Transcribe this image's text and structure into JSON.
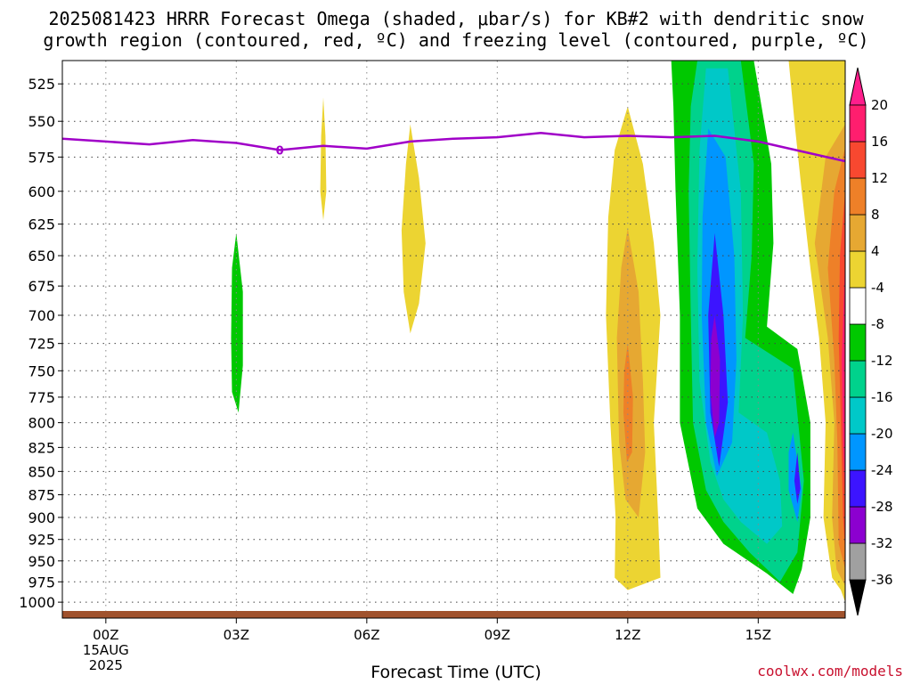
{
  "header": {
    "title_line1": "2025081423 HRRR Forecast Omega (shaded, μbar/s) for KB#2 with dendritic snow",
    "title_line2": "growth region (contoured, red, ºC) and freezing level (contoured, purple, ºC)"
  },
  "footer": {
    "credit": "coolwx.com/models"
  },
  "chart_data": {
    "type": "heatmap",
    "xlabel": "Forecast Time (UTC)",
    "ylabel": "",
    "x_ticks": [
      {
        "hour": 0,
        "label": "00Z",
        "sub": [
          "15AUG",
          "2025"
        ]
      },
      {
        "hour": 3,
        "label": "03Z",
        "sub": []
      },
      {
        "hour": 6,
        "label": "06Z",
        "sub": []
      },
      {
        "hour": 9,
        "label": "09Z",
        "sub": []
      },
      {
        "hour": 12,
        "label": "12Z",
        "sub": []
      },
      {
        "hour": 15,
        "label": "15Z",
        "sub": []
      }
    ],
    "xlim": [
      -1,
      17
    ],
    "y_ticks": [
      525,
      550,
      575,
      600,
      625,
      650,
      675,
      700,
      725,
      750,
      775,
      800,
      825,
      850,
      875,
      900,
      925,
      950,
      975,
      1000
    ],
    "ylim": [
      1020,
      510
    ],
    "y_scale": "log-pressure",
    "grid": true,
    "colorbar": {
      "levels": [
        "-36",
        "-32",
        "-28",
        "-24",
        "-20",
        "-16",
        "-12",
        "-8",
        "-4",
        "4",
        "8",
        "12",
        "16",
        "20"
      ],
      "colors": [
        "#a0a0a0",
        "#8c00d0",
        "#3c14ff",
        "#0096ff",
        "#00c8c8",
        "#00d28c",
        "#00c800",
        "#ffffff",
        "#ecd432",
        "#e6a832",
        "#ee8028",
        "#f84830",
        "#ff1e6e"
      ],
      "under_color": "#000000",
      "over_color": "#ff1e8c"
    },
    "freezing_level": {
      "label": "0",
      "label_hour": 4,
      "color": "#a000c8",
      "points": [
        [
          -1,
          562
        ],
        [
          0,
          564
        ],
        [
          1,
          566
        ],
        [
          2,
          563
        ],
        [
          3,
          565
        ],
        [
          4,
          570
        ],
        [
          5,
          567
        ],
        [
          6,
          569
        ],
        [
          7,
          564
        ],
        [
          8,
          562
        ],
        [
          9,
          561
        ],
        [
          10,
          558
        ],
        [
          11,
          561
        ],
        [
          12,
          560
        ],
        [
          13,
          561
        ],
        [
          14,
          560
        ],
        [
          15,
          564
        ],
        [
          16,
          571
        ],
        [
          17,
          578
        ]
      ]
    },
    "omega_regions": [
      {
        "value": 4,
        "color": "#ecd432",
        "points": [
          [
            5.0,
            534
          ],
          [
            5.05,
            560
          ],
          [
            5.07,
            600
          ],
          [
            5.0,
            622
          ],
          [
            4.93,
            600
          ],
          [
            4.95,
            560
          ]
        ]
      },
      {
        "value": 4,
        "color": "#ecd432",
        "points": [
          [
            7.0,
            552
          ],
          [
            7.2,
            590
          ],
          [
            7.35,
            640
          ],
          [
            7.2,
            690
          ],
          [
            7.0,
            716
          ],
          [
            6.85,
            680
          ],
          [
            6.8,
            630
          ],
          [
            6.9,
            580
          ]
        ]
      },
      {
        "value": -8,
        "color": "#00c800",
        "points": [
          [
            3.0,
            632
          ],
          [
            3.15,
            680
          ],
          [
            3.15,
            745
          ],
          [
            3.05,
            790
          ],
          [
            2.9,
            770
          ],
          [
            2.88,
            720
          ],
          [
            2.9,
            660
          ]
        ]
      },
      {
        "value": 4,
        "color": "#ecd432",
        "points": [
          [
            12.0,
            540
          ],
          [
            12.35,
            580
          ],
          [
            12.6,
            640
          ],
          [
            12.75,
            700
          ],
          [
            12.6,
            800
          ],
          [
            12.7,
            900
          ],
          [
            12.75,
            970
          ],
          [
            12.0,
            985
          ],
          [
            11.7,
            970
          ],
          [
            11.72,
            900
          ],
          [
            11.6,
            800
          ],
          [
            11.5,
            700
          ],
          [
            11.55,
            620
          ],
          [
            11.7,
            570
          ]
        ]
      },
      {
        "value": 8,
        "color": "#e6a832",
        "points": [
          [
            12.0,
            628
          ],
          [
            12.25,
            680
          ],
          [
            12.35,
            760
          ],
          [
            12.4,
            830
          ],
          [
            12.25,
            900
          ],
          [
            11.95,
            880
          ],
          [
            11.8,
            820
          ],
          [
            11.75,
            720
          ],
          [
            11.85,
            660
          ]
        ]
      },
      {
        "value": 12,
        "color": "#ee8028",
        "points": [
          [
            12.0,
            725
          ],
          [
            12.12,
            775
          ],
          [
            12.1,
            830
          ],
          [
            11.98,
            840
          ],
          [
            11.9,
            790
          ],
          [
            11.92,
            750
          ]
        ]
      },
      {
        "value": -8,
        "color": "#00c800",
        "points": [
          [
            13.0,
            510
          ],
          [
            14.9,
            510
          ],
          [
            15.3,
            580
          ],
          [
            15.35,
            640
          ],
          [
            15.2,
            710
          ],
          [
            15.9,
            730
          ],
          [
            16.2,
            800
          ],
          [
            16.2,
            900
          ],
          [
            16.0,
            960
          ],
          [
            15.8,
            990
          ],
          [
            15.2,
            965
          ],
          [
            14.2,
            930
          ],
          [
            13.6,
            890
          ],
          [
            13.2,
            800
          ],
          [
            13.2,
            700
          ],
          [
            13.1,
            600
          ],
          [
            13.05,
            540
          ]
        ]
      },
      {
        "value": -12,
        "color": "#00d28c",
        "points": [
          [
            13.6,
            510
          ],
          [
            14.6,
            510
          ],
          [
            14.9,
            580
          ],
          [
            14.85,
            650
          ],
          [
            14.7,
            720
          ],
          [
            15.8,
            748
          ],
          [
            16.05,
            860
          ],
          [
            15.9,
            940
          ],
          [
            15.5,
            975
          ],
          [
            14.8,
            940
          ],
          [
            14.2,
            905
          ],
          [
            13.8,
            870
          ],
          [
            13.5,
            800
          ],
          [
            13.45,
            700
          ],
          [
            13.4,
            600
          ],
          [
            13.45,
            540
          ]
        ]
      },
      {
        "value": -16,
        "color": "#00c8c8",
        "points": [
          [
            13.8,
            515
          ],
          [
            14.3,
            515
          ],
          [
            14.6,
            600
          ],
          [
            14.65,
            700
          ],
          [
            14.55,
            790
          ],
          [
            15.2,
            810
          ],
          [
            15.5,
            860
          ],
          [
            15.55,
            910
          ],
          [
            15.2,
            930
          ],
          [
            14.6,
            905
          ],
          [
            14.2,
            880
          ],
          [
            13.9,
            840
          ],
          [
            13.65,
            760
          ],
          [
            13.6,
            660
          ],
          [
            13.65,
            570
          ]
        ]
      },
      {
        "value": -20,
        "color": "#0096ff",
        "points": [
          [
            13.85,
            555
          ],
          [
            14.25,
            575
          ],
          [
            14.45,
            650
          ],
          [
            14.5,
            740
          ],
          [
            14.4,
            820
          ],
          [
            14.05,
            855
          ],
          [
            13.8,
            800
          ],
          [
            13.7,
            700
          ],
          [
            13.72,
            620
          ]
        ]
      },
      {
        "value": -20,
        "color": "#0096ff",
        "points": [
          [
            15.8,
            810
          ],
          [
            16.0,
            870
          ],
          [
            15.9,
            905
          ],
          [
            15.7,
            870
          ],
          [
            15.7,
            830
          ]
        ]
      },
      {
        "value": -24,
        "color": "#3c14ff",
        "points": [
          [
            14.0,
            632
          ],
          [
            14.2,
            700
          ],
          [
            14.3,
            780
          ],
          [
            14.1,
            845
          ],
          [
            13.9,
            790
          ],
          [
            13.85,
            700
          ]
        ]
      },
      {
        "value": -24,
        "color": "#3c14ff",
        "points": [
          [
            15.9,
            830
          ],
          [
            15.97,
            868
          ],
          [
            15.9,
            885
          ],
          [
            15.83,
            860
          ]
        ]
      },
      {
        "value": -28,
        "color": "#8c00d0",
        "points": [
          [
            14.0,
            700
          ],
          [
            14.12,
            740
          ],
          [
            14.1,
            800
          ],
          [
            14.0,
            815
          ],
          [
            13.9,
            770
          ],
          [
            13.92,
            720
          ]
        ]
      },
      {
        "value": 4,
        "color": "#ecd432",
        "points": [
          [
            15.7,
            510
          ],
          [
            17.0,
            510
          ],
          [
            17.0,
            1000
          ],
          [
            16.9,
            985
          ],
          [
            16.7,
            970
          ],
          [
            16.5,
            900
          ],
          [
            16.55,
            800
          ],
          [
            16.4,
            720
          ],
          [
            16.2,
            660
          ],
          [
            16.0,
            600
          ],
          [
            15.85,
            555
          ]
        ]
      },
      {
        "value": 8,
        "color": "#e6a832",
        "points": [
          [
            17.0,
            552
          ],
          [
            17.0,
            980
          ],
          [
            16.8,
            960
          ],
          [
            16.7,
            900
          ],
          [
            16.75,
            800
          ],
          [
            16.6,
            720
          ],
          [
            16.3,
            640
          ],
          [
            16.55,
            575
          ]
        ]
      },
      {
        "value": 12,
        "color": "#ee8028",
        "points": [
          [
            17.0,
            568
          ],
          [
            17.0,
            960
          ],
          [
            16.85,
            930
          ],
          [
            16.82,
            820
          ],
          [
            16.75,
            740
          ],
          [
            16.6,
            660
          ],
          [
            16.75,
            600
          ]
        ]
      },
      {
        "value": 16,
        "color": "#f84830",
        "points": [
          [
            17.0,
            600
          ],
          [
            17.0,
            940
          ],
          [
            16.95,
            900
          ],
          [
            16.9,
            800
          ],
          [
            16.85,
            720
          ],
          [
            16.88,
            650
          ]
        ]
      },
      {
        "value": 20,
        "color": "#ff1e6e",
        "points": [
          [
            17.0,
            650
          ],
          [
            17.0,
            880
          ],
          [
            16.95,
            820
          ],
          [
            16.92,
            740
          ]
        ]
      }
    ]
  }
}
